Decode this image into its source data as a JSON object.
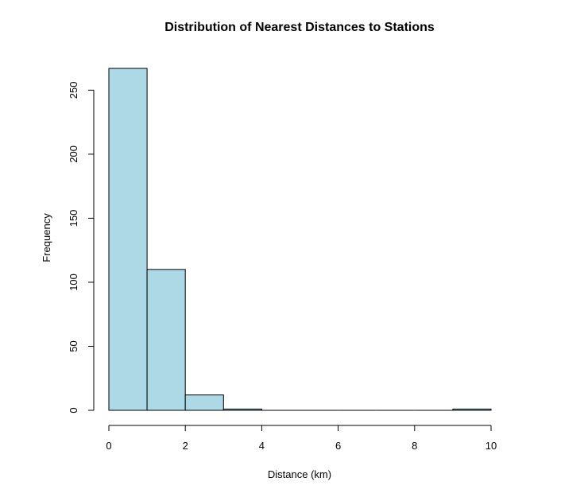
{
  "chart_data": {
    "type": "bar",
    "title": "Distribution of Nearest Distances to Stations",
    "xlabel": "Distance (km)",
    "ylabel": "Frequency",
    "bin_edges": [
      0,
      1,
      2,
      3,
      4,
      5,
      6,
      7,
      8,
      9,
      10
    ],
    "values": [
      267,
      110,
      12,
      1,
      0,
      0,
      0,
      0,
      0,
      1
    ],
    "xlim": [
      0,
      10
    ],
    "ylim": [
      0,
      267
    ],
    "xticks": [
      0,
      2,
      4,
      6,
      8,
      10
    ],
    "yticks": [
      0,
      50,
      100,
      150,
      200,
      250
    ],
    "bar_color": "#add8e6",
    "grid": false,
    "legend": "none"
  }
}
